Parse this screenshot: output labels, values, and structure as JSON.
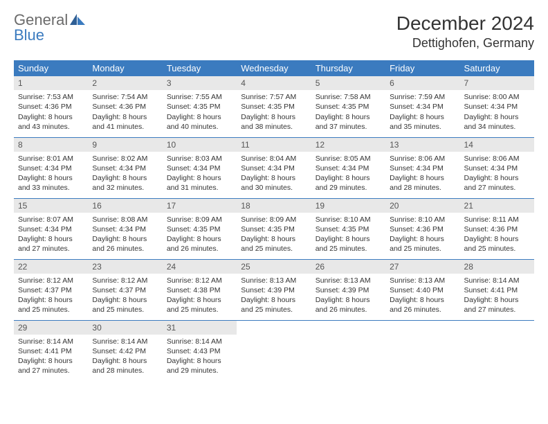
{
  "logo": {
    "line1": "General",
    "line2": "Blue"
  },
  "title": {
    "month": "December 2024",
    "location": "Dettighofen, Germany"
  },
  "colors": {
    "header_bg": "#3b7bbf",
    "header_text": "#ffffff",
    "daynum_bg": "#e8e8e8",
    "row_divider": "#3b7bbf",
    "logo_gray": "#6b6b6b",
    "logo_blue": "#3b7bbf"
  },
  "day_headers": [
    "Sunday",
    "Monday",
    "Tuesday",
    "Wednesday",
    "Thursday",
    "Friday",
    "Saturday"
  ],
  "weeks": [
    [
      {
        "n": "1",
        "sr": "Sunrise: 7:53 AM",
        "ss": "Sunset: 4:36 PM",
        "dl1": "Daylight: 8 hours",
        "dl2": "and 43 minutes."
      },
      {
        "n": "2",
        "sr": "Sunrise: 7:54 AM",
        "ss": "Sunset: 4:36 PM",
        "dl1": "Daylight: 8 hours",
        "dl2": "and 41 minutes."
      },
      {
        "n": "3",
        "sr": "Sunrise: 7:55 AM",
        "ss": "Sunset: 4:35 PM",
        "dl1": "Daylight: 8 hours",
        "dl2": "and 40 minutes."
      },
      {
        "n": "4",
        "sr": "Sunrise: 7:57 AM",
        "ss": "Sunset: 4:35 PM",
        "dl1": "Daylight: 8 hours",
        "dl2": "and 38 minutes."
      },
      {
        "n": "5",
        "sr": "Sunrise: 7:58 AM",
        "ss": "Sunset: 4:35 PM",
        "dl1": "Daylight: 8 hours",
        "dl2": "and 37 minutes."
      },
      {
        "n": "6",
        "sr": "Sunrise: 7:59 AM",
        "ss": "Sunset: 4:34 PM",
        "dl1": "Daylight: 8 hours",
        "dl2": "and 35 minutes."
      },
      {
        "n": "7",
        "sr": "Sunrise: 8:00 AM",
        "ss": "Sunset: 4:34 PM",
        "dl1": "Daylight: 8 hours",
        "dl2": "and 34 minutes."
      }
    ],
    [
      {
        "n": "8",
        "sr": "Sunrise: 8:01 AM",
        "ss": "Sunset: 4:34 PM",
        "dl1": "Daylight: 8 hours",
        "dl2": "and 33 minutes."
      },
      {
        "n": "9",
        "sr": "Sunrise: 8:02 AM",
        "ss": "Sunset: 4:34 PM",
        "dl1": "Daylight: 8 hours",
        "dl2": "and 32 minutes."
      },
      {
        "n": "10",
        "sr": "Sunrise: 8:03 AM",
        "ss": "Sunset: 4:34 PM",
        "dl1": "Daylight: 8 hours",
        "dl2": "and 31 minutes."
      },
      {
        "n": "11",
        "sr": "Sunrise: 8:04 AM",
        "ss": "Sunset: 4:34 PM",
        "dl1": "Daylight: 8 hours",
        "dl2": "and 30 minutes."
      },
      {
        "n": "12",
        "sr": "Sunrise: 8:05 AM",
        "ss": "Sunset: 4:34 PM",
        "dl1": "Daylight: 8 hours",
        "dl2": "and 29 minutes."
      },
      {
        "n": "13",
        "sr": "Sunrise: 8:06 AM",
        "ss": "Sunset: 4:34 PM",
        "dl1": "Daylight: 8 hours",
        "dl2": "and 28 minutes."
      },
      {
        "n": "14",
        "sr": "Sunrise: 8:06 AM",
        "ss": "Sunset: 4:34 PM",
        "dl1": "Daylight: 8 hours",
        "dl2": "and 27 minutes."
      }
    ],
    [
      {
        "n": "15",
        "sr": "Sunrise: 8:07 AM",
        "ss": "Sunset: 4:34 PM",
        "dl1": "Daylight: 8 hours",
        "dl2": "and 27 minutes."
      },
      {
        "n": "16",
        "sr": "Sunrise: 8:08 AM",
        "ss": "Sunset: 4:34 PM",
        "dl1": "Daylight: 8 hours",
        "dl2": "and 26 minutes."
      },
      {
        "n": "17",
        "sr": "Sunrise: 8:09 AM",
        "ss": "Sunset: 4:35 PM",
        "dl1": "Daylight: 8 hours",
        "dl2": "and 26 minutes."
      },
      {
        "n": "18",
        "sr": "Sunrise: 8:09 AM",
        "ss": "Sunset: 4:35 PM",
        "dl1": "Daylight: 8 hours",
        "dl2": "and 25 minutes."
      },
      {
        "n": "19",
        "sr": "Sunrise: 8:10 AM",
        "ss": "Sunset: 4:35 PM",
        "dl1": "Daylight: 8 hours",
        "dl2": "and 25 minutes."
      },
      {
        "n": "20",
        "sr": "Sunrise: 8:10 AM",
        "ss": "Sunset: 4:36 PM",
        "dl1": "Daylight: 8 hours",
        "dl2": "and 25 minutes."
      },
      {
        "n": "21",
        "sr": "Sunrise: 8:11 AM",
        "ss": "Sunset: 4:36 PM",
        "dl1": "Daylight: 8 hours",
        "dl2": "and 25 minutes."
      }
    ],
    [
      {
        "n": "22",
        "sr": "Sunrise: 8:12 AM",
        "ss": "Sunset: 4:37 PM",
        "dl1": "Daylight: 8 hours",
        "dl2": "and 25 minutes."
      },
      {
        "n": "23",
        "sr": "Sunrise: 8:12 AM",
        "ss": "Sunset: 4:37 PM",
        "dl1": "Daylight: 8 hours",
        "dl2": "and 25 minutes."
      },
      {
        "n": "24",
        "sr": "Sunrise: 8:12 AM",
        "ss": "Sunset: 4:38 PM",
        "dl1": "Daylight: 8 hours",
        "dl2": "and 25 minutes."
      },
      {
        "n": "25",
        "sr": "Sunrise: 8:13 AM",
        "ss": "Sunset: 4:39 PM",
        "dl1": "Daylight: 8 hours",
        "dl2": "and 25 minutes."
      },
      {
        "n": "26",
        "sr": "Sunrise: 8:13 AM",
        "ss": "Sunset: 4:39 PM",
        "dl1": "Daylight: 8 hours",
        "dl2": "and 26 minutes."
      },
      {
        "n": "27",
        "sr": "Sunrise: 8:13 AM",
        "ss": "Sunset: 4:40 PM",
        "dl1": "Daylight: 8 hours",
        "dl2": "and 26 minutes."
      },
      {
        "n": "28",
        "sr": "Sunrise: 8:14 AM",
        "ss": "Sunset: 4:41 PM",
        "dl1": "Daylight: 8 hours",
        "dl2": "and 27 minutes."
      }
    ],
    [
      {
        "n": "29",
        "sr": "Sunrise: 8:14 AM",
        "ss": "Sunset: 4:41 PM",
        "dl1": "Daylight: 8 hours",
        "dl2": "and 27 minutes."
      },
      {
        "n": "30",
        "sr": "Sunrise: 8:14 AM",
        "ss": "Sunset: 4:42 PM",
        "dl1": "Daylight: 8 hours",
        "dl2": "and 28 minutes."
      },
      {
        "n": "31",
        "sr": "Sunrise: 8:14 AM",
        "ss": "Sunset: 4:43 PM",
        "dl1": "Daylight: 8 hours",
        "dl2": "and 29 minutes."
      },
      {
        "empty": true
      },
      {
        "empty": true
      },
      {
        "empty": true
      },
      {
        "empty": true
      }
    ]
  ]
}
